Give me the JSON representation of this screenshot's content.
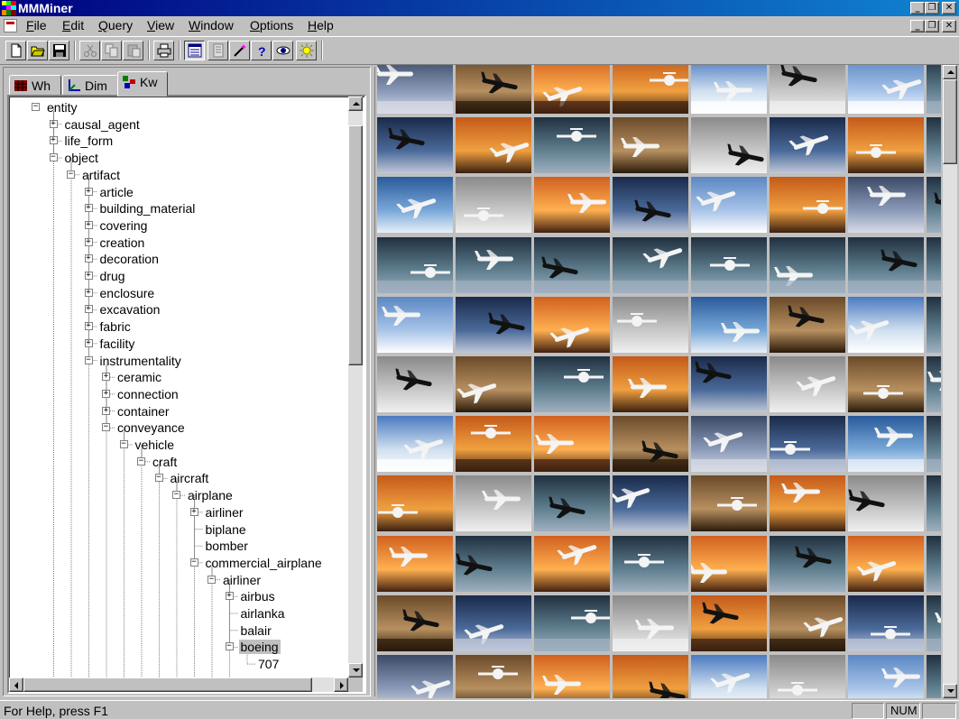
{
  "window": {
    "title": "MMMiner",
    "controls": [
      "minimize",
      "restore",
      "close"
    ]
  },
  "menubar": {
    "items": [
      {
        "label": "File",
        "accel": "F"
      },
      {
        "label": "Edit",
        "accel": "E"
      },
      {
        "label": "Query",
        "accel": "Q"
      },
      {
        "label": "View",
        "accel": "V"
      },
      {
        "label": "Window",
        "accel": "W"
      },
      {
        "label": "Options",
        "accel": "O"
      },
      {
        "label": "Help",
        "accel": "H"
      }
    ]
  },
  "toolbar": {
    "buttons": [
      {
        "name": "new-file-button",
        "icon": "new-file-icon"
      },
      {
        "name": "open-folder-button",
        "icon": "open-folder-icon"
      },
      {
        "name": "save-button",
        "icon": "floppy-disk-icon"
      },
      {
        "name": "cut-button",
        "icon": "scissors-icon"
      },
      {
        "name": "copy-button",
        "icon": "copy-icon"
      },
      {
        "name": "paste-button",
        "icon": "paste-icon"
      },
      {
        "name": "print-button",
        "icon": "printer-icon"
      },
      {
        "name": "thumbnail-view-button",
        "icon": "list-view-icon",
        "pressed": true
      },
      {
        "name": "detail-view-button",
        "icon": "details-icon"
      },
      {
        "name": "wand-button",
        "icon": "magic-wand-icon"
      },
      {
        "name": "help-button",
        "icon": "question-mark-icon"
      },
      {
        "name": "eye-button",
        "icon": "eye-icon"
      },
      {
        "name": "sun-button",
        "icon": "sun-icon"
      }
    ]
  },
  "tabs": [
    {
      "label": "Wh",
      "icon": "cube-grid-icon"
    },
    {
      "label": "Dim",
      "icon": "axes-icon"
    },
    {
      "label": "Kw",
      "icon": "keyword-tree-icon",
      "active": true
    }
  ],
  "tree": [
    {
      "label": "entity",
      "depth": 0,
      "expander": "-"
    },
    {
      "label": "causal_agent",
      "depth": 1,
      "expander": "+"
    },
    {
      "label": "life_form",
      "depth": 1,
      "expander": "+"
    },
    {
      "label": "object",
      "depth": 1,
      "expander": "-"
    },
    {
      "label": "artifact",
      "depth": 2,
      "expander": "-"
    },
    {
      "label": "article",
      "depth": 3,
      "expander": "+"
    },
    {
      "label": "building_material",
      "depth": 3,
      "expander": "+"
    },
    {
      "label": "covering",
      "depth": 3,
      "expander": "+"
    },
    {
      "label": "creation",
      "depth": 3,
      "expander": "+"
    },
    {
      "label": "decoration",
      "depth": 3,
      "expander": "+"
    },
    {
      "label": "drug",
      "depth": 3,
      "expander": "+"
    },
    {
      "label": "enclosure",
      "depth": 3,
      "expander": "+"
    },
    {
      "label": "excavation",
      "depth": 3,
      "expander": "+"
    },
    {
      "label": "fabric",
      "depth": 3,
      "expander": "+"
    },
    {
      "label": "facility",
      "depth": 3,
      "expander": "+"
    },
    {
      "label": "instrumentality",
      "depth": 3,
      "expander": "-"
    },
    {
      "label": "ceramic",
      "depth": 4,
      "expander": "+"
    },
    {
      "label": "connection",
      "depth": 4,
      "expander": "+"
    },
    {
      "label": "container",
      "depth": 4,
      "expander": "+"
    },
    {
      "label": "conveyance",
      "depth": 4,
      "expander": "-"
    },
    {
      "label": "vehicle",
      "depth": 5,
      "expander": "-"
    },
    {
      "label": "craft",
      "depth": 6,
      "expander": "-"
    },
    {
      "label": "aircraft",
      "depth": 7,
      "expander": "-"
    },
    {
      "label": "airplane",
      "depth": 8,
      "expander": "-"
    },
    {
      "label": "airliner",
      "depth": 9,
      "expander": "+"
    },
    {
      "label": "biplane",
      "depth": 9,
      "expander": ""
    },
    {
      "label": "bomber",
      "depth": 9,
      "expander": ""
    },
    {
      "label": "commercial_airplane",
      "depth": 9,
      "expander": "-"
    },
    {
      "label": "airliner",
      "depth": 10,
      "expander": "-"
    },
    {
      "label": "airbus",
      "depth": 11,
      "expander": "+"
    },
    {
      "label": "airlanka",
      "depth": 11,
      "expander": ""
    },
    {
      "label": "balair",
      "depth": 11,
      "expander": ""
    },
    {
      "label": "boeing",
      "depth": 11,
      "expander": "-",
      "selected": true
    },
    {
      "label": "707",
      "depth": 12,
      "expander": ""
    }
  ],
  "thumbnails": {
    "rows": 11,
    "cols": 7,
    "palettes": [
      [
        "#3a4a66",
        "#8a9ab8",
        "#d8dce6"
      ],
      [
        "#c45a1a",
        "#f0a040",
        "#3a2010"
      ],
      [
        "#5b87c4",
        "#a8c4e8",
        "#ffffff"
      ],
      [
        "#1a2a4a",
        "#4a6a9a",
        "#c0c8d8"
      ],
      [
        "#d06020",
        "#ffb050",
        "#402010"
      ],
      [
        "#8a8a8a",
        "#c8c8c8",
        "#f0f0f0"
      ],
      [
        "#2a5a9a",
        "#78a8d8",
        "#e8f0f8"
      ],
      [
        "#6a4a2a",
        "#b89060",
        "#2a1a0a"
      ],
      [
        "#4a7ac0",
        "#d0e0f0",
        "#ffffff"
      ],
      [
        "#203040",
        "#608090",
        "#a0b0c0"
      ]
    ]
  },
  "statusbar": {
    "message": "For Help, press F1",
    "num": "NUM"
  }
}
